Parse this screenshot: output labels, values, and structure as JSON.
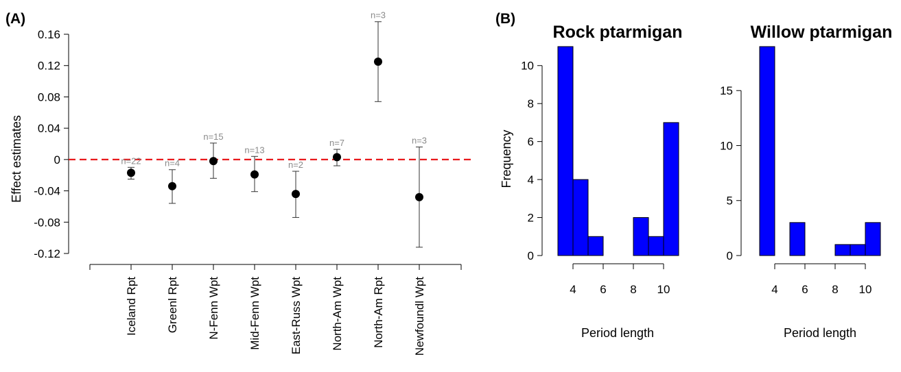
{
  "panel_a": {
    "label": "(A)",
    "ylabel": "Effect estimates",
    "chart_data": {
      "type": "scatter",
      "ylabel": "Effect estimates",
      "ylim": [
        -0.12,
        0.16
      ],
      "yticks": [
        "0.16",
        "0.12",
        "0.08",
        "0.04",
        "0",
        "-0.04",
        "-0.08",
        "-0.12"
      ],
      "reference_line": 0,
      "reference_line_color": "#e8191b",
      "categories": [
        "Iceland Rpt",
        "Greenl Rpt",
        "N-Fenn Wpt",
        "Mid-Fenn Wpt",
        "East-Russ Wpt",
        "North-Am Wpt",
        "North-Am Rpt",
        "Newfoundl Wpt"
      ],
      "estimates": [
        -0.017,
        -0.034,
        -0.002,
        -0.019,
        -0.044,
        0.003,
        0.125,
        -0.048
      ],
      "lower": [
        -0.025,
        -0.056,
        -0.024,
        -0.041,
        -0.074,
        -0.008,
        0.074,
        -0.112
      ],
      "upper": [
        -0.01,
        -0.013,
        0.021,
        0.004,
        -0.015,
        0.013,
        0.176,
        0.016
      ],
      "n_labels": [
        "n=22",
        "n=4",
        "n=15",
        "n=13",
        "n=2",
        "n=7",
        "n=3",
        "n=3"
      ],
      "n_label_color": "#8a8a8a"
    }
  },
  "panel_b": {
    "label": "(B)",
    "chart_data": [
      {
        "type": "bar",
        "title": "Rock ptarmigan",
        "xlabel": "Period length",
        "ylabel": "Frequency",
        "bin_edges": [
          3,
          4,
          5,
          6,
          7,
          8,
          9,
          10,
          11
        ],
        "values": [
          11,
          4,
          1,
          0,
          0,
          2,
          1,
          7
        ],
        "xticks": [
          "4",
          "6",
          "8",
          "10"
        ],
        "yticks": [
          "0",
          "2",
          "4",
          "6",
          "8",
          "10"
        ],
        "ylim": [
          0,
          11
        ],
        "bar_color": "#0000ff"
      },
      {
        "type": "bar",
        "title": "Willow ptarmigan",
        "xlabel": "Period length",
        "ylabel": "",
        "bin_edges": [
          3,
          4,
          5,
          6,
          7,
          8,
          9,
          10,
          11
        ],
        "values": [
          19,
          0,
          3,
          0,
          0,
          1,
          1,
          3
        ],
        "xticks": [
          "4",
          "6",
          "8",
          "10"
        ],
        "yticks": [
          "0",
          "5",
          "10",
          "15"
        ],
        "ylim": [
          0,
          19
        ],
        "bar_color": "#0000ff"
      }
    ]
  }
}
